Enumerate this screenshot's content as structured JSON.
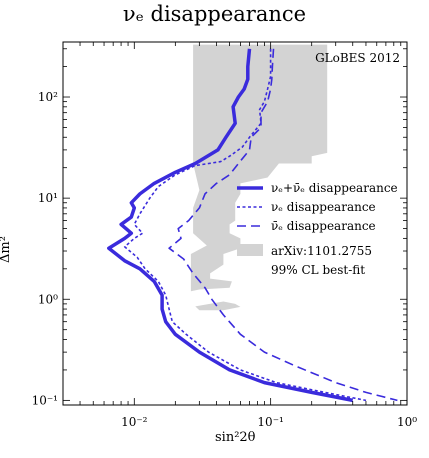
{
  "chart_data": {
    "type": "line",
    "title": "νₑ disappearance",
    "xlabel": "sin²2θ",
    "ylabel": "Δm²",
    "xscale": "log",
    "yscale": "log",
    "xlim": [
      0.003,
      1.0
    ],
    "ylim": [
      0.09,
      350
    ],
    "x_ticks": [
      "10⁻²",
      "10⁻¹",
      "10⁰"
    ],
    "y_ticks": [
      "10⁻¹",
      "10⁰",
      "10¹",
      "10²"
    ],
    "x_tick_values": [
      0.01,
      0.1,
      1
    ],
    "y_tick_values": [
      0.1,
      1,
      10,
      100
    ],
    "annotation": "GLoBES 2012",
    "legend": {
      "placement": "center-right",
      "entries": [
        {
          "label": "νₑ+ν̄ₑ disappearance",
          "style": "solid-thick",
          "color": "#3a2bdc"
        },
        {
          "label": "νₑ disappearance",
          "style": "dotted",
          "color": "#3a2bdc"
        },
        {
          "label": "ν̄ₑ disappearance",
          "style": "dashed",
          "color": "#3a2bdc"
        },
        {
          "label": "arXiv:1101.2755",
          "label2": "99% CL best-fit",
          "style": "fill",
          "color": "#d3d3d3"
        }
      ]
    },
    "series": [
      {
        "name": "νₑ+ν̄ₑ disappearance",
        "style": "solid-thick",
        "points": [
          [
            0.07,
            300
          ],
          [
            0.068,
            200
          ],
          [
            0.068,
            150
          ],
          [
            0.064,
            120
          ],
          [
            0.058,
            100
          ],
          [
            0.053,
            80
          ],
          [
            0.055,
            55
          ],
          [
            0.047,
            40
          ],
          [
            0.041,
            30
          ],
          [
            0.028,
            22
          ],
          [
            0.02,
            18
          ],
          [
            0.014,
            14
          ],
          [
            0.011,
            11
          ],
          [
            0.0095,
            9
          ],
          [
            0.01,
            8
          ],
          [
            0.0095,
            6.5
          ],
          [
            0.008,
            5.5
          ],
          [
            0.0095,
            4.5
          ],
          [
            0.0085,
            4
          ],
          [
            0.0065,
            3.2
          ],
          [
            0.0085,
            2.4
          ],
          [
            0.011,
            2.0
          ],
          [
            0.014,
            1.5
          ],
          [
            0.016,
            1.1
          ],
          [
            0.016,
            0.8
          ],
          [
            0.017,
            0.6
          ],
          [
            0.02,
            0.45
          ],
          [
            0.03,
            0.3
          ],
          [
            0.05,
            0.2
          ],
          [
            0.09,
            0.15
          ],
          [
            0.2,
            0.12
          ],
          [
            0.4,
            0.1
          ]
        ]
      },
      {
        "name": "νₑ disappearance",
        "style": "dotted",
        "points": [
          [
            0.1,
            300
          ],
          [
            0.1,
            220
          ],
          [
            0.1,
            160
          ],
          [
            0.095,
            120
          ],
          [
            0.09,
            90
          ],
          [
            0.083,
            75
          ],
          [
            0.085,
            55
          ],
          [
            0.07,
            40
          ],
          [
            0.062,
            32
          ],
          [
            0.05,
            26
          ],
          [
            0.043,
            23
          ],
          [
            0.028,
            21
          ],
          [
            0.02,
            17
          ],
          [
            0.015,
            13
          ],
          [
            0.013,
            10
          ],
          [
            0.011,
            7
          ],
          [
            0.01,
            5.5
          ],
          [
            0.0115,
            4.5
          ],
          [
            0.01,
            4
          ],
          [
            0.0085,
            3.3
          ],
          [
            0.0105,
            2.6
          ],
          [
            0.012,
            2.0
          ],
          [
            0.015,
            1.5
          ],
          [
            0.017,
            1.1
          ],
          [
            0.018,
            0.8
          ],
          [
            0.019,
            0.6
          ],
          [
            0.024,
            0.45
          ],
          [
            0.035,
            0.3
          ],
          [
            0.06,
            0.2
          ],
          [
            0.11,
            0.15
          ],
          [
            0.25,
            0.12
          ],
          [
            0.5,
            0.1
          ]
        ]
      },
      {
        "name": "ν̄ₑ disappearance",
        "style": "dashed",
        "points": [
          [
            0.105,
            300
          ],
          [
            0.103,
            200
          ],
          [
            0.102,
            150
          ],
          [
            0.1,
            120
          ],
          [
            0.095,
            90
          ],
          [
            0.085,
            70
          ],
          [
            0.085,
            50
          ],
          [
            0.072,
            40
          ],
          [
            0.07,
            30
          ],
          [
            0.058,
            22
          ],
          [
            0.05,
            17
          ],
          [
            0.04,
            14
          ],
          [
            0.033,
            11
          ],
          [
            0.03,
            8
          ],
          [
            0.025,
            6
          ],
          [
            0.021,
            5
          ],
          [
            0.022,
            4
          ],
          [
            0.018,
            3.2
          ],
          [
            0.023,
            2.5
          ],
          [
            0.027,
            1.8
          ],
          [
            0.033,
            1.3
          ],
          [
            0.037,
            1.0
          ],
          [
            0.045,
            0.7
          ],
          [
            0.06,
            0.45
          ],
          [
            0.09,
            0.3
          ],
          [
            0.15,
            0.22
          ],
          [
            0.3,
            0.15
          ],
          [
            0.5,
            0.12
          ],
          [
            0.85,
            0.1
          ]
        ]
      }
    ],
    "region_best_fit": [
      [
        0.027,
        330
      ],
      [
        0.26,
        330
      ],
      [
        0.26,
        28
      ],
      [
        0.2,
        26
      ],
      [
        0.2,
        22
      ],
      [
        0.115,
        22
      ],
      [
        0.095,
        16
      ],
      [
        0.06,
        14
      ],
      [
        0.06,
        11
      ],
      [
        0.055,
        9
      ],
      [
        0.055,
        6
      ],
      [
        0.05,
        5.5
      ],
      [
        0.05,
        4.5
      ],
      [
        0.06,
        4
      ],
      [
        0.06,
        3.2
      ],
      [
        0.045,
        2.8
      ],
      [
        0.045,
        2.2
      ],
      [
        0.036,
        1.8
      ],
      [
        0.036,
        1.6
      ],
      [
        0.052,
        1.5
      ],
      [
        0.05,
        1.3
      ],
      [
        0.03,
        1.25
      ],
      [
        0.026,
        1.2
      ],
      [
        0.026,
        2.8
      ],
      [
        0.034,
        3.4
      ],
      [
        0.027,
        4.5
      ],
      [
        0.027,
        8
      ],
      [
        0.03,
        12
      ],
      [
        0.027,
        22
      ],
      [
        0.027,
        330
      ]
    ],
    "region_best_fit_island": [
      [
        0.028,
        0.85
      ],
      [
        0.045,
        0.95
      ],
      [
        0.055,
        0.9
      ],
      [
        0.06,
        0.84
      ],
      [
        0.045,
        0.78
      ],
      [
        0.03,
        0.78
      ]
    ]
  }
}
